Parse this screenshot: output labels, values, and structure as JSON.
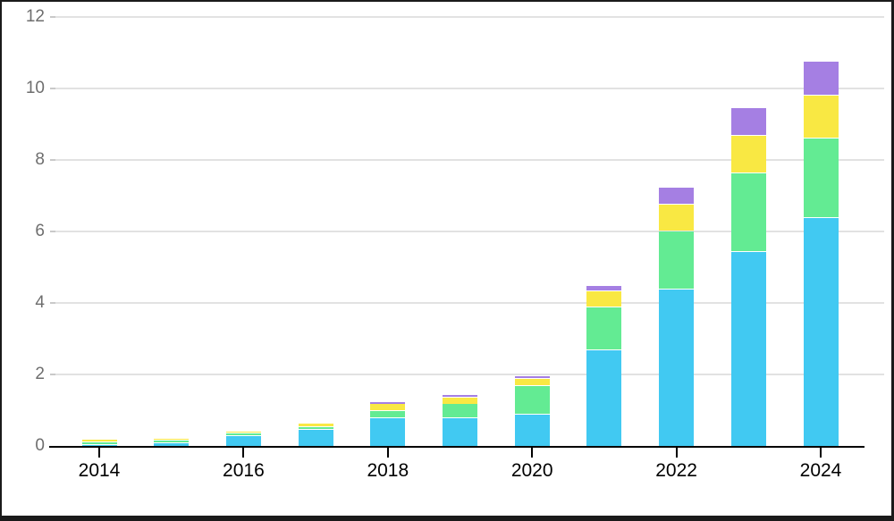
{
  "chart_data": {
    "type": "bar",
    "stacked": true,
    "title": "",
    "xlabel": "",
    "ylabel": "",
    "ylim": [
      0,
      12
    ],
    "grid": true,
    "legend": false,
    "y_tick_values": [
      0,
      2,
      4,
      6,
      8,
      10,
      12
    ],
    "y_tick_labels": [
      "0",
      "2",
      "4",
      "6",
      "8",
      "10",
      "12"
    ],
    "categories": [
      "2014",
      "2015",
      "2016",
      "2017",
      "2018",
      "2019",
      "2020",
      "2021",
      "2022",
      "2023",
      "2024"
    ],
    "x_axis_labeled_categories": [
      "2014",
      "2016",
      "2018",
      "2020",
      "2022",
      "2024"
    ],
    "series": [
      {
        "name": "blue-segment",
        "color": "#41c9f2",
        "values": [
          0.05,
          0.11,
          0.3,
          0.48,
          0.8,
          0.79,
          0.9,
          2.7,
          4.4,
          5.45,
          6.4
        ]
      },
      {
        "name": "green-segment",
        "color": "#63eb93",
        "values": [
          0.07,
          0.07,
          0.07,
          0.08,
          0.19,
          0.39,
          0.8,
          1.2,
          1.62,
          2.2,
          2.22
        ]
      },
      {
        "name": "yellow-segment",
        "color": "#f9e843",
        "values": [
          0.08,
          0.06,
          0.06,
          0.11,
          0.19,
          0.19,
          0.2,
          0.45,
          0.75,
          1.05,
          1.2
        ]
      },
      {
        "name": "purple-segment",
        "color": "#a57fe3",
        "values": [
          0.0,
          0.0,
          0.0,
          0.0,
          0.07,
          0.07,
          0.08,
          0.16,
          0.48,
          0.78,
          0.95
        ]
      }
    ],
    "totals": [
      0.2,
      0.24,
      0.43,
      0.67,
      1.25,
      1.44,
      1.98,
      4.51,
      7.25,
      9.48,
      10.77
    ],
    "colors": {
      "gridline": "#e2e2e2",
      "axis_line": "#000000",
      "y_label_text": "#6e6e6e",
      "x_label_text": "#000000",
      "background": "#ffffff",
      "frame_border": "#1a1a1a"
    }
  }
}
